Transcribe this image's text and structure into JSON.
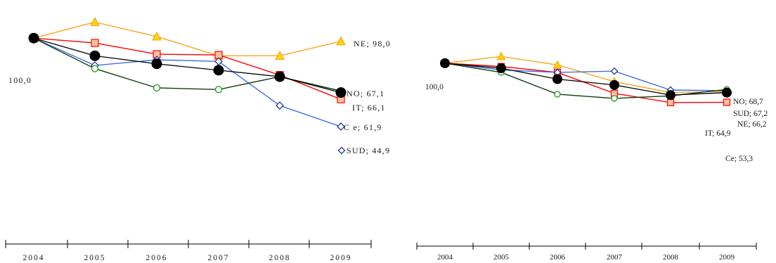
{
  "chart_data": [
    {
      "type": "line",
      "x": [
        "2004",
        "2005",
        "2006",
        "2007",
        "2008",
        "2009"
      ],
      "base_label": "100,0",
      "ylim": [
        30,
        115
      ],
      "grid": false,
      "series": [
        {
          "key": "NE",
          "values": [
            100,
            110,
            101,
            89,
            89,
            98
          ],
          "color": "#f5a623",
          "marker": "triangle",
          "marker_fill": "#ffd700",
          "end_label": "NE; 98,0"
        },
        {
          "key": "CE",
          "values": [
            100,
            97,
            90,
            89.5,
            77,
            61.9
          ],
          "color": "#ff0000",
          "marker": "square",
          "marker_fill": "#ffc0a0",
          "end_label": "C e; 61,9"
        },
        {
          "key": "SUD",
          "values": [
            100,
            83,
            86.5,
            85.5,
            58,
            44.9
          ],
          "color": "#3b6fe0",
          "marker": "diamond",
          "marker_fill": "#ffffff",
          "end_label": "SUD; 44,9"
        },
        {
          "key": "NO",
          "values": [
            100,
            81,
            69,
            68,
            76,
            67.1
          ],
          "color": "#0f3d0f",
          "marker": "circle",
          "marker_fill": "#ffffff",
          "end_label": "NO; 67,1"
        },
        {
          "key": "IT",
          "values": [
            100,
            89,
            84,
            80,
            76,
            66.1
          ],
          "color": "#000000",
          "marker": "dot",
          "marker_fill": "#000000",
          "end_label": "IT; 66,1"
        }
      ]
    },
    {
      "type": "line",
      "x": [
        "2004",
        "2005",
        "2006",
        "2007",
        "2008",
        "2009"
      ],
      "base_label": "100,0",
      "ylim": [
        0,
        115
      ],
      "grid": false,
      "series": [
        {
          "key": "NE",
          "values": [
            100,
            108,
            98,
            78,
            65,
            66.2
          ],
          "color": "#f5a623",
          "marker": "triangle",
          "marker_fill": "#ffd700",
          "end_label": "NE; 66,2"
        },
        {
          "key": "CE",
          "values": [
            100,
            96,
            89,
            64,
            53,
            53.3
          ],
          "color": "#ff0000",
          "marker": "square",
          "marker_fill": "#ffc0a0",
          "end_label": "Ce; 53,3"
        },
        {
          "key": "SUD",
          "values": [
            100,
            92,
            89,
            90.5,
            68,
            67.2
          ],
          "color": "#3b6fe0",
          "marker": "diamond",
          "marker_fill": "#ffffff",
          "end_label": "SUD; 67,2"
        },
        {
          "key": "NO",
          "values": [
            100,
            89,
            63,
            58,
            61,
            68.7
          ],
          "color": "#0f3d0f",
          "marker": "circle",
          "marker_fill": "#ffffff",
          "end_label": "NO; 68,7"
        },
        {
          "key": "IT",
          "values": [
            100,
            94,
            81,
            74,
            62,
            64.9
          ],
          "color": "#000000",
          "marker": "dot",
          "marker_fill": "#000000",
          "end_label": "IT; 64,9"
        }
      ]
    }
  ]
}
